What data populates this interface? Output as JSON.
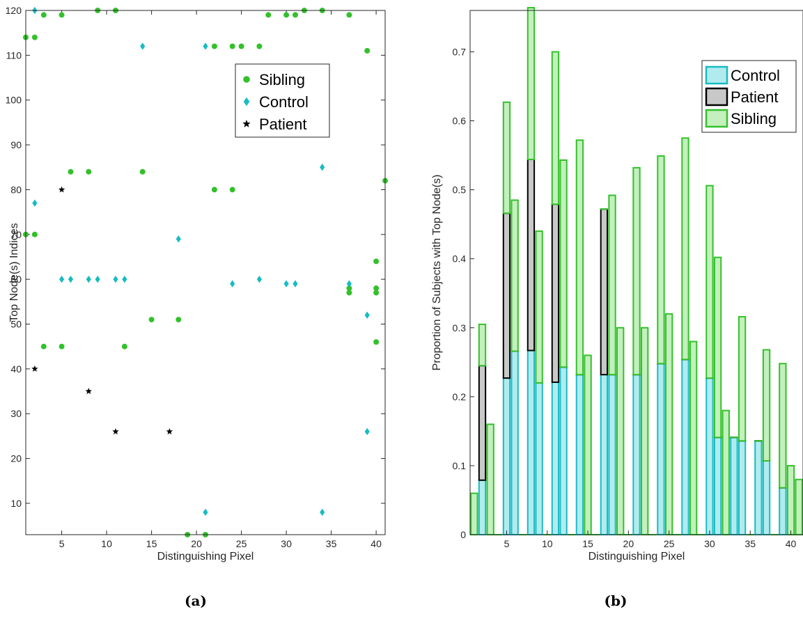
{
  "colors": {
    "sibling_marker": "#33c12b",
    "control_marker": "#17bcc4",
    "patient_marker": "#000000",
    "control_fill": "#b2ebee",
    "control_edge": "#17bcc4",
    "patient_fill": "#c8c8c8",
    "patient_edge": "#000000",
    "sibling_fill": "#c4efbe",
    "sibling_edge": "#33c12b"
  },
  "captions": {
    "a": "(a)",
    "b": "(b)"
  },
  "chart_data": [
    {
      "type": "scatter",
      "xlabel": "Distinguishing Pixel",
      "ylabel": "Top Node(s) Indices",
      "xlim": [
        1,
        41
      ],
      "ylim": [
        3,
        120
      ],
      "xticks": [
        5,
        10,
        15,
        20,
        25,
        30,
        35,
        40
      ],
      "yticks": [
        10,
        20,
        30,
        40,
        50,
        60,
        70,
        80,
        90,
        100,
        110,
        120
      ],
      "legend": {
        "placement": "top-right",
        "entries": [
          {
            "label": "Sibling",
            "marker": "circle"
          },
          {
            "label": "Control",
            "marker": "diamond"
          },
          {
            "label": "Patient",
            "marker": "star"
          }
        ]
      },
      "series": [
        {
          "name": "Sibling",
          "marker": "circle",
          "points": [
            [
              1,
              114
            ],
            [
              2,
              114
            ],
            [
              3,
              119
            ],
            [
              5,
              119
            ],
            [
              9,
              120
            ],
            [
              11,
              120
            ],
            [
              25,
              112
            ],
            [
              24,
              112
            ],
            [
              27,
              112
            ],
            [
              22,
              112
            ],
            [
              28,
              119
            ],
            [
              30,
              119
            ],
            [
              31,
              119
            ],
            [
              32,
              120
            ],
            [
              34,
              120
            ],
            [
              37,
              119
            ],
            [
              39,
              111
            ],
            [
              6,
              84
            ],
            [
              8,
              84
            ],
            [
              14,
              84
            ],
            [
              1,
              70
            ],
            [
              2,
              70
            ],
            [
              22,
              80
            ],
            [
              24,
              80
            ],
            [
              41,
              82
            ],
            [
              40,
              64
            ],
            [
              40,
              58
            ],
            [
              40,
              57
            ],
            [
              37,
              58
            ],
            [
              37,
              57
            ],
            [
              15,
              51
            ],
            [
              18,
              51
            ],
            [
              3,
              45
            ],
            [
              5,
              45
            ],
            [
              12,
              45
            ],
            [
              40,
              46
            ],
            [
              19,
              3
            ],
            [
              21,
              3
            ]
          ]
        },
        {
          "name": "Control",
          "marker": "diamond",
          "points": [
            [
              2,
              120
            ],
            [
              14,
              112
            ],
            [
              21,
              112
            ],
            [
              2,
              77
            ],
            [
              18,
              69
            ],
            [
              5,
              60
            ],
            [
              6,
              60
            ],
            [
              8,
              60
            ],
            [
              9,
              60
            ],
            [
              11,
              60
            ],
            [
              12,
              60
            ],
            [
              27,
              60
            ],
            [
              24,
              59
            ],
            [
              30,
              59
            ],
            [
              31,
              59
            ],
            [
              37,
              59
            ],
            [
              34,
              85
            ],
            [
              39,
              52
            ],
            [
              39,
              26
            ],
            [
              21,
              8
            ],
            [
              34,
              8
            ]
          ]
        },
        {
          "name": "Patient",
          "marker": "star",
          "points": [
            [
              5,
              80
            ],
            [
              2,
              40
            ],
            [
              8,
              35
            ],
            [
              11,
              26
            ],
            [
              17,
              26
            ]
          ]
        }
      ]
    },
    {
      "type": "bar",
      "stacked": true,
      "xlabel": "Distinguishing Pixel",
      "ylabel": "Proportion of Subjects with Top Node(s)",
      "xlim": [
        0.5,
        41.5
      ],
      "ylim": [
        0,
        0.76
      ],
      "xticks": [
        5,
        10,
        15,
        20,
        25,
        30,
        35,
        40
      ],
      "yticks": [
        0,
        0.1,
        0.2,
        0.3,
        0.4,
        0.5,
        0.6,
        0.7
      ],
      "legend": {
        "placement": "top-right",
        "entries": [
          "Control",
          "Patient",
          "Sibling"
        ]
      },
      "categories": [
        1,
        2,
        3,
        4,
        5,
        6,
        7,
        8,
        9,
        10,
        11,
        12,
        13,
        14,
        15,
        16,
        17,
        18,
        19,
        20,
        21,
        22,
        23,
        24,
        25,
        26,
        27,
        28,
        29,
        30,
        31,
        32,
        33,
        34,
        35,
        36,
        37,
        38,
        39,
        40,
        41
      ],
      "series": [
        {
          "name": "Control",
          "values": [
            0,
            0.079,
            0,
            0,
            0.227,
            0.266,
            0,
            0.267,
            0.22,
            0,
            0.221,
            0.243,
            0,
            0.232,
            0,
            0,
            0.232,
            0.232,
            0,
            0,
            0.232,
            0,
            0,
            0.248,
            0,
            0,
            0.254,
            0,
            0,
            0.227,
            0.141,
            0,
            0.141,
            0.136,
            0,
            0.136,
            0.107,
            0,
            0.068,
            0,
            0
          ]
        },
        {
          "name": "Patient",
          "values": [
            0,
            0.166,
            0,
            0,
            0.239,
            0,
            0,
            0.277,
            0,
            0,
            0.258,
            0,
            0,
            0,
            0,
            0,
            0.24,
            0,
            0,
            0,
            0,
            0,
            0,
            0,
            0,
            0,
            0,
            0,
            0,
            0,
            0,
            0,
            0,
            0,
            0,
            0,
            0,
            0,
            0,
            0,
            0
          ]
        },
        {
          "name": "Sibling",
          "values": [
            0.06,
            0.06,
            0.16,
            0,
            0.161,
            0.219,
            0,
            0.22,
            0.22,
            0,
            0.221,
            0.3,
            0,
            0.34,
            0.26,
            0,
            0,
            0.26,
            0.3,
            0,
            0.3,
            0.3,
            0,
            0.301,
            0.32,
            0,
            0.321,
            0.28,
            0,
            0.279,
            0.261,
            0.18,
            0,
            0.18,
            0,
            0,
            0.161,
            0,
            0.18,
            0.1,
            0.08
          ]
        }
      ]
    }
  ]
}
